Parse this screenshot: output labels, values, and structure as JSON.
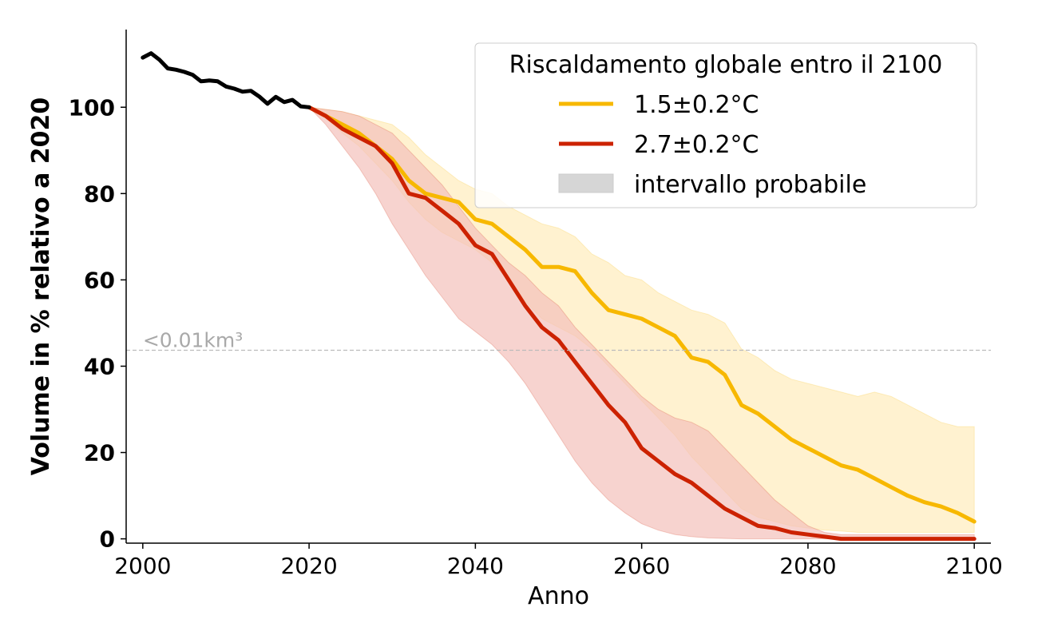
{
  "chart_data": {
    "type": "line",
    "xlabel": "Anno",
    "ylabel": "Volume in % relativo a 2020",
    "xlim": [
      1998,
      2102
    ],
    "ylim": [
      -1,
      118
    ],
    "xticks": [
      2000,
      2020,
      2040,
      2060,
      2080,
      2100
    ],
    "yticks": [
      0,
      20,
      40,
      60,
      80,
      100
    ],
    "grid": false,
    "legend": {
      "title": "Riscaldamento globale entro il 2100",
      "placement": "top-right",
      "range_label": "intervallo probabile"
    },
    "annotation": {
      "text": "<0.01km³",
      "y": 43.7,
      "color": "#a9a9a9"
    },
    "historical": {
      "color": "#000000",
      "x": [
        2000,
        2001,
        2002,
        2003,
        2004,
        2005,
        2006,
        2007,
        2008,
        2009,
        2010,
        2011,
        2012,
        2013,
        2014,
        2015,
        2016,
        2017,
        2018,
        2019,
        2020
      ],
      "y": [
        111.5,
        112.5,
        111,
        109,
        108.7,
        108.2,
        107.5,
        106,
        106.2,
        106,
        104.8,
        104.3,
        103.6,
        103.8,
        102.5,
        100.8,
        102.4,
        101.2,
        101.7,
        100.2,
        100
      ]
    },
    "series": [
      {
        "name": "1.5±0.2°C",
        "color": "#f7b800",
        "band_color": "#fff0c8",
        "x": [
          2020,
          2022,
          2024,
          2026,
          2028,
          2030,
          2032,
          2034,
          2036,
          2038,
          2040,
          2042,
          2044,
          2046,
          2048,
          2050,
          2052,
          2054,
          2056,
          2058,
          2060,
          2062,
          2064,
          2066,
          2068,
          2070,
          2072,
          2074,
          2076,
          2078,
          2080,
          2082,
          2084,
          2086,
          2088,
          2090,
          2092,
          2094,
          2096,
          2098,
          2100
        ],
        "y": [
          100,
          98,
          96,
          94,
          91,
          88,
          83,
          80,
          79,
          78,
          74,
          73,
          70,
          67,
          63,
          63,
          62,
          57,
          53,
          52,
          51,
          49,
          47,
          42,
          41,
          38,
          31,
          29,
          26,
          23,
          21,
          19,
          17,
          16,
          14,
          12,
          10,
          8.5,
          7.5,
          6,
          4
        ],
        "lower": [
          100,
          97.5,
          94,
          91,
          87,
          83,
          78,
          74,
          71,
          69,
          67,
          64,
          60,
          55,
          51,
          49,
          47,
          44,
          40,
          36,
          32,
          28,
          24,
          19,
          15,
          11,
          7,
          5,
          4,
          3,
          2.5,
          2,
          1.8,
          1.5,
          1.5,
          1.5,
          1.5,
          1.5,
          1.5,
          1.5,
          1.5
        ],
        "upper": [
          100,
          99.5,
          99,
          98,
          97,
          96,
          93,
          89,
          86,
          83,
          81,
          80,
          77,
          75,
          73,
          72,
          70,
          66,
          64,
          61,
          60,
          57,
          55,
          53,
          52,
          50,
          44,
          42,
          39,
          37,
          36,
          35,
          34,
          33,
          34,
          33,
          31,
          29,
          27,
          26,
          26
        ]
      },
      {
        "name": "2.7±0.2°C",
        "color": "#cc2200",
        "band_color": "#f4c0bb",
        "x": [
          2020,
          2022,
          2024,
          2026,
          2028,
          2030,
          2032,
          2034,
          2036,
          2038,
          2040,
          2042,
          2044,
          2046,
          2048,
          2050,
          2052,
          2054,
          2056,
          2058,
          2060,
          2062,
          2064,
          2066,
          2068,
          2070,
          2072,
          2074,
          2076,
          2078,
          2080,
          2082,
          2084,
          2086,
          2088,
          2090,
          2092,
          2094,
          2096,
          2098,
          2100
        ],
        "y": [
          100,
          98,
          95,
          93,
          91,
          87,
          80,
          79,
          76,
          73,
          68,
          66,
          60,
          54,
          49,
          46,
          41,
          36,
          31,
          27,
          21,
          18,
          15,
          13,
          10,
          7,
          5,
          3,
          2.5,
          1.5,
          1,
          0.5,
          0,
          0,
          0,
          0,
          0,
          0,
          0,
          0,
          0
        ],
        "lower": [
          100,
          96,
          91,
          86,
          80,
          73,
          67,
          61,
          56,
          51,
          48,
          45,
          41,
          36,
          30,
          24,
          18,
          13,
          9,
          6,
          3.5,
          2,
          1,
          0.5,
          0.2,
          0.1,
          0,
          0,
          0,
          0,
          0,
          0,
          0,
          0,
          0,
          0,
          0,
          0,
          0,
          0,
          0
        ],
        "upper": [
          100,
          99.5,
          99,
          98,
          96,
          94,
          90,
          86,
          82,
          77,
          72,
          68,
          64,
          61,
          57,
          54,
          49,
          45,
          41,
          37,
          33,
          30,
          28,
          27,
          25,
          21,
          17,
          13,
          9,
          6,
          3,
          1.5,
          1,
          1,
          1,
          1,
          1,
          1,
          1,
          1,
          1
        ]
      }
    ]
  }
}
